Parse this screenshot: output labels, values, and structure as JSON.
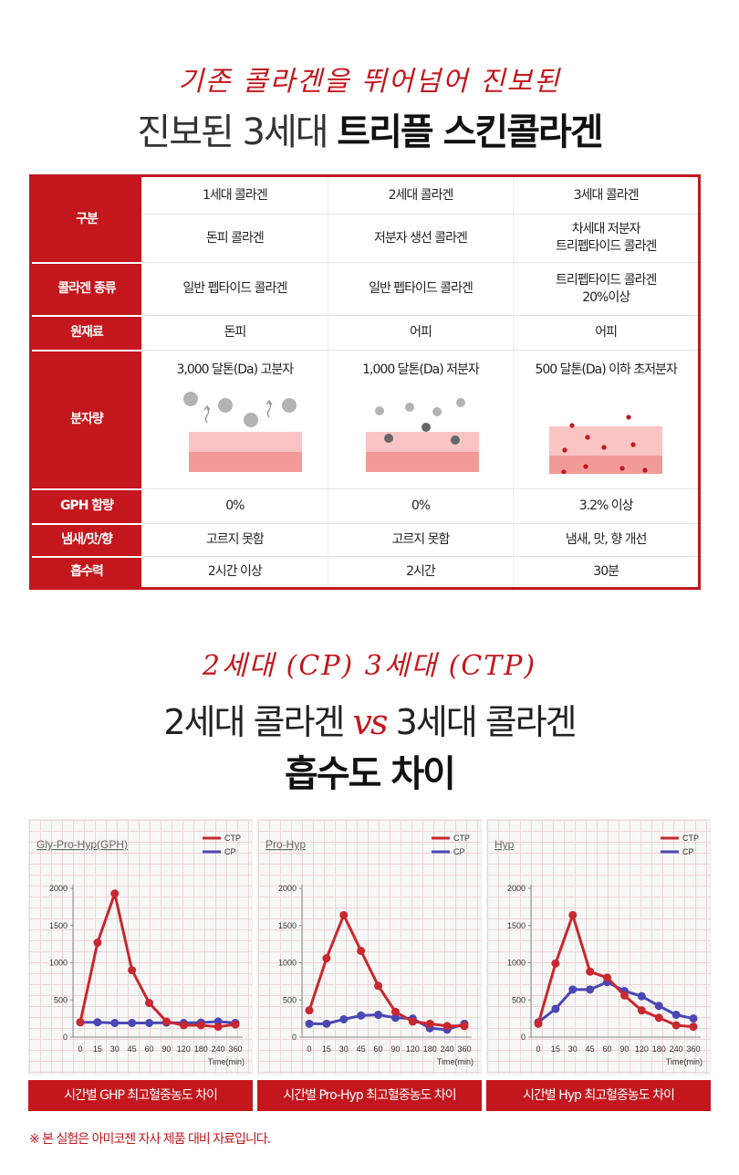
{
  "section1": {
    "subtitle": "기존 콜라겐을 뛰어넘어 진보된",
    "title_light": "진보된 3세대",
    "title_bold": "트리플 스킨콜라겐"
  },
  "table": {
    "rows": [
      {
        "label": "구분",
        "cells": [
          "1세대 콜라겐",
          "2세대 콜라겐",
          "3세대 콜라겐"
        ]
      },
      {
        "label": "",
        "cells": [
          "돈피 콜라겐",
          "저분자 생선 콜라겐",
          "차세대 저분자\n트리펩타이드 콜라겐"
        ]
      },
      {
        "label": "콜라겐 종류",
        "cells": [
          "일반 펩타이드 콜라겐",
          "일반 펩타이드 콜라겐",
          "트리펩타이드 콜라겐\n20%이상"
        ]
      },
      {
        "label": "원재료",
        "cells": [
          "돈피",
          "어피",
          "어피"
        ]
      },
      {
        "label": "분자량",
        "cells": [
          "3,000 달톤(Da) 고분자",
          "1,000 달톤(Da) 저분자",
          "500 달톤(Da) 이하 초저분자"
        ]
      },
      {
        "label": "GPH 함량",
        "cells": [
          "0%",
          "0%",
          "3.2% 이상"
        ]
      },
      {
        "label": "냄새/맛/향",
        "cells": [
          "고르지 못함",
          "고르지 못함",
          "냄새, 맛, 향 개선"
        ]
      },
      {
        "label": "흡수력",
        "cells": [
          "2시간 이상",
          "2시간",
          "30분"
        ]
      }
    ]
  },
  "section2": {
    "subtitle": "2세대 (CP) 3세대 (CTP)",
    "title_a": "2세대 콜라겐",
    "title_vs": "vs",
    "title_b": "3세대 콜라겐",
    "title_bold": "흡수도 차이"
  },
  "colors": {
    "accent": "#c3171d",
    "ctp": "#c8282e",
    "cp": "#4a47b4"
  },
  "chart_data": [
    {
      "type": "line",
      "title": "Gly-Pro-Hyp(GPH)",
      "caption": "시간별 GHP 최고혈중농도 차이",
      "x": [
        "0",
        "15",
        "30",
        "45",
        "60",
        "90",
        "120",
        "180",
        "240",
        "360"
      ],
      "xlabel": "Time(min)",
      "ylim": [
        0,
        2000
      ],
      "yticks": [
        "0",
        "500",
        "1000",
        "1500",
        "2000"
      ],
      "legend": "top-right",
      "series": [
        {
          "name": "CTP",
          "values": [
            200,
            1270,
            1930,
            900,
            460,
            210,
            160,
            160,
            140,
            170
          ]
        },
        {
          "name": "CP",
          "values": [
            200,
            200,
            190,
            190,
            190,
            195,
            190,
            195,
            210,
            190
          ]
        }
      ]
    },
    {
      "type": "line",
      "title": "Pro-Hyp",
      "caption": "시간별 Pro-Hyp 최고혈중농도 차이",
      "x": [
        "0",
        "15",
        "30",
        "45",
        "60",
        "90",
        "120",
        "180",
        "240",
        "360"
      ],
      "xlabel": "Time(min)",
      "ylim": [
        0,
        2000
      ],
      "yticks": [
        "0",
        "500",
        "1000",
        "1500",
        "2000"
      ],
      "legend": "top-right",
      "series": [
        {
          "name": "CTP",
          "values": [
            360,
            1060,
            1640,
            1160,
            690,
            340,
            210,
            180,
            150,
            150
          ]
        },
        {
          "name": "CP",
          "values": [
            180,
            180,
            240,
            290,
            300,
            260,
            250,
            120,
            100,
            180
          ]
        }
      ]
    },
    {
      "type": "line",
      "title": "Hyp",
      "caption": "시간별 Hyp 최고혈중농도 차이",
      "x": [
        "0",
        "15",
        "30",
        "45",
        "60",
        "90",
        "120",
        "180",
        "240",
        "360"
      ],
      "xlabel": "Time(min)",
      "ylim": [
        0,
        2000
      ],
      "yticks": [
        "0",
        "500",
        "1000",
        "1500",
        "2000"
      ],
      "legend": "top-right",
      "series": [
        {
          "name": "CTP",
          "values": [
            180,
            990,
            1640,
            880,
            800,
            560,
            360,
            260,
            160,
            140
          ]
        },
        {
          "name": "CP",
          "values": [
            200,
            380,
            640,
            640,
            740,
            620,
            550,
            420,
            300,
            250
          ]
        }
      ]
    }
  ],
  "note": "※ 본 실험은 아미코젠 자사 제품 대비 자료입니다."
}
